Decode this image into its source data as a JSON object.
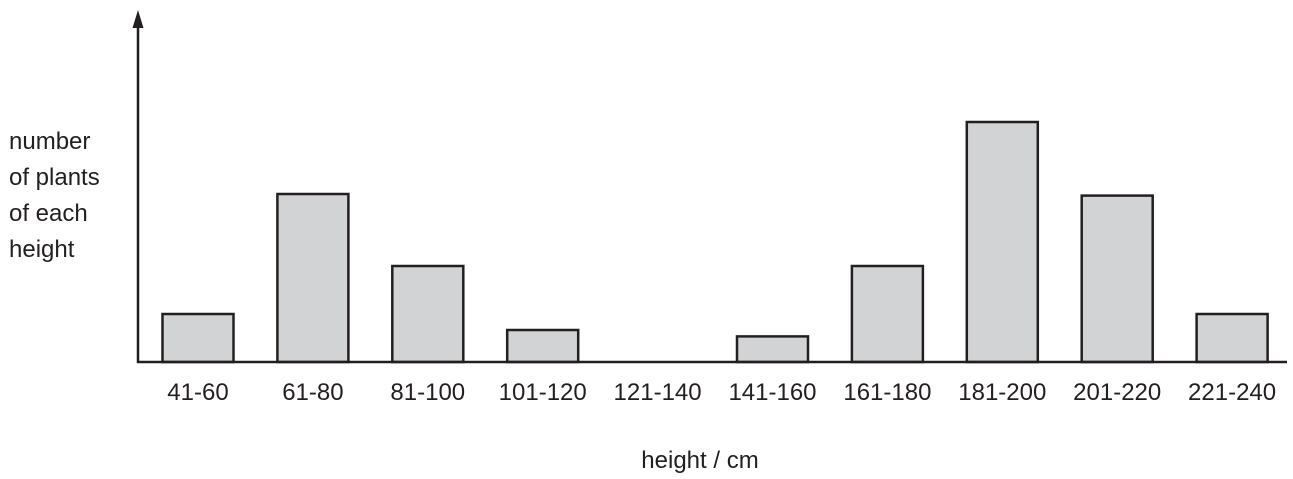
{
  "chart_data": {
    "type": "bar",
    "title": "",
    "ylabel_lines": [
      "number",
      "of plants",
      "of each",
      "height"
    ],
    "xlabel": "height / cm",
    "categories": [
      "41-60",
      "61-80",
      "81-100",
      "101-120",
      "121-140",
      "141-160",
      "161-180",
      "181-200",
      "201-220",
      "221-240"
    ],
    "values": [
      3,
      10.5,
      6,
      2,
      0,
      1.6,
      6,
      15,
      10.4,
      3
    ],
    "ylim": [
      0,
      15.5
    ],
    "grid": false,
    "y_ticks_shown": false,
    "colors": {
      "bar_fill": "#d1d3d4",
      "bar_stroke": "#231f20",
      "axis": "#231f20"
    }
  }
}
